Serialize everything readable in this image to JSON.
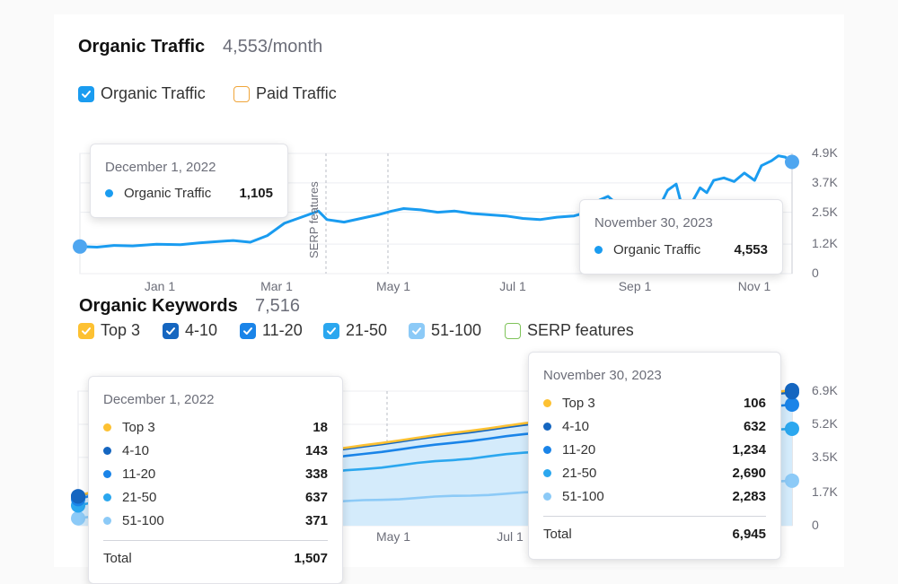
{
  "organic_traffic": {
    "title": "Organic Traffic",
    "summary": "4,553/month",
    "legend": [
      {
        "label": "Organic Traffic",
        "checked": true,
        "color": "#1a9cf0"
      },
      {
        "label": "Paid Traffic",
        "checked": false,
        "color": "#f0a53a"
      }
    ],
    "serp_marker_label": "SERP features",
    "tooltip_start": {
      "date": "December 1, 2022",
      "series": "Organic Traffic",
      "value": "1,105"
    },
    "tooltip_end": {
      "date": "November 30, 2023",
      "series": "Organic Traffic",
      "value": "4,553"
    }
  },
  "organic_keywords": {
    "title": "Organic Keywords",
    "summary": "7,516",
    "legend": [
      {
        "label": "Top 3",
        "checked": true,
        "color": "#fdc132"
      },
      {
        "label": "4-10",
        "checked": true,
        "color": "#1566c0"
      },
      {
        "label": "11-20",
        "checked": true,
        "color": "#1a84e8"
      },
      {
        "label": "21-50",
        "checked": true,
        "color": "#2ba7ef"
      },
      {
        "label": "51-100",
        "checked": true,
        "color": "#8ccaf7"
      },
      {
        "label": "SERP features",
        "checked": false,
        "color": "#7fc35a"
      }
    ],
    "tooltip_start": {
      "date": "December 1, 2022",
      "rows": [
        {
          "label": "Top 3",
          "value": "18",
          "color": "#fdc132"
        },
        {
          "label": "4-10",
          "value": "143",
          "color": "#1566c0"
        },
        {
          "label": "11-20",
          "value": "338",
          "color": "#1a84e8"
        },
        {
          "label": "21-50",
          "value": "637",
          "color": "#2ba7ef"
        },
        {
          "label": "51-100",
          "value": "371",
          "color": "#8ccaf7"
        }
      ],
      "total_label": "Total",
      "total_value": "1,507"
    },
    "tooltip_end": {
      "date": "November 30, 2023",
      "rows": [
        {
          "label": "Top 3",
          "value": "106",
          "color": "#fdc132"
        },
        {
          "label": "4-10",
          "value": "632",
          "color": "#1566c0"
        },
        {
          "label": "11-20",
          "value": "1,234",
          "color": "#1a84e8"
        },
        {
          "label": "21-50",
          "value": "2,690",
          "color": "#2ba7ef"
        },
        {
          "label": "51-100",
          "value": "2,283",
          "color": "#8ccaf7"
        }
      ],
      "total_label": "Total",
      "total_value": "6,945"
    }
  },
  "chart_data": [
    {
      "type": "line",
      "title": "Organic Traffic",
      "xlabel": "",
      "ylabel": "",
      "x_ticks": [
        "Jan 1",
        "Mar 1",
        "May 1",
        "Jul 1",
        "Sep 1",
        "Nov 1"
      ],
      "y_ticks": [
        "0",
        "1.2K",
        "2.5K",
        "3.7K",
        "4.9K"
      ],
      "ylim": [
        0,
        4900
      ],
      "x_range_days": [
        0,
        364
      ],
      "series": [
        {
          "name": "Organic Traffic",
          "color": "#1a9cf0",
          "points": [
            [
              0,
              1105
            ],
            [
              10,
              1080
            ],
            [
              20,
              1150
            ],
            [
              31,
              1130
            ],
            [
              45,
              1200
            ],
            [
              59,
              1180
            ],
            [
              70,
              1250
            ],
            [
              80,
              1300
            ],
            [
              90,
              1350
            ],
            [
              100,
              1280
            ],
            [
              110,
              1550
            ],
            [
              120,
              2050
            ],
            [
              130,
              2300
            ],
            [
              140,
              2550
            ],
            [
              145,
              2200
            ],
            [
              155,
              2100
            ],
            [
              165,
              2250
            ],
            [
              175,
              2400
            ],
            [
              183,
              2550
            ],
            [
              190,
              2650
            ],
            [
              200,
              2600
            ],
            [
              210,
              2500
            ],
            [
              220,
              2550
            ],
            [
              230,
              2450
            ],
            [
              240,
              2400
            ],
            [
              250,
              2350
            ],
            [
              260,
              2250
            ],
            [
              270,
              2200
            ],
            [
              280,
              2300
            ],
            [
              290,
              2350
            ],
            [
              300,
              2550
            ],
            [
              305,
              3000
            ],
            [
              310,
              3150
            ],
            [
              315,
              2850
            ],
            [
              320,
              2750
            ],
            [
              325,
              2900
            ],
            [
              330,
              2850
            ],
            [
              340,
              2700
            ],
            [
              345,
              3400
            ],
            [
              350,
              3650
            ],
            [
              355,
              2300
            ],
            [
              360,
              3000
            ],
            [
              364,
              3500
            ],
            [
              368,
              3300
            ],
            [
              372,
              3800
            ],
            [
              378,
              3900
            ],
            [
              384,
              3750
            ],
            [
              390,
              4100
            ],
            [
              396,
              3800
            ],
            [
              400,
              4400
            ],
            [
              406,
              4600
            ],
            [
              410,
              4800
            ],
            [
              414,
              4750
            ],
            [
              418,
              4553
            ]
          ]
        }
      ],
      "annotations": [
        {
          "label": "SERP features",
          "x_day": 126
        }
      ]
    },
    {
      "type": "area",
      "title": "Organic Keywords",
      "xlabel": "",
      "ylabel": "",
      "x_ticks": [
        "May 1",
        "Jul 1"
      ],
      "y_ticks": [
        "0",
        "1.7K",
        "3.5K",
        "5.2K",
        "6.9K"
      ],
      "ylim": [
        0,
        6900
      ],
      "stacked": true,
      "series": [
        {
          "name": "51-100",
          "start": 371,
          "end": 2283,
          "color": "#8ccaf7"
        },
        {
          "name": "21-50",
          "start": 637,
          "end": 2690,
          "color": "#2ba7ef"
        },
        {
          "name": "11-20",
          "start": 338,
          "end": 1234,
          "color": "#1a84e8"
        },
        {
          "name": "4-10",
          "start": 143,
          "end": 632,
          "color": "#1566c0"
        },
        {
          "name": "Top 3",
          "start": 18,
          "end": 106,
          "color": "#fdc132"
        }
      ],
      "total": {
        "start": 1507,
        "end": 6945
      }
    }
  ]
}
